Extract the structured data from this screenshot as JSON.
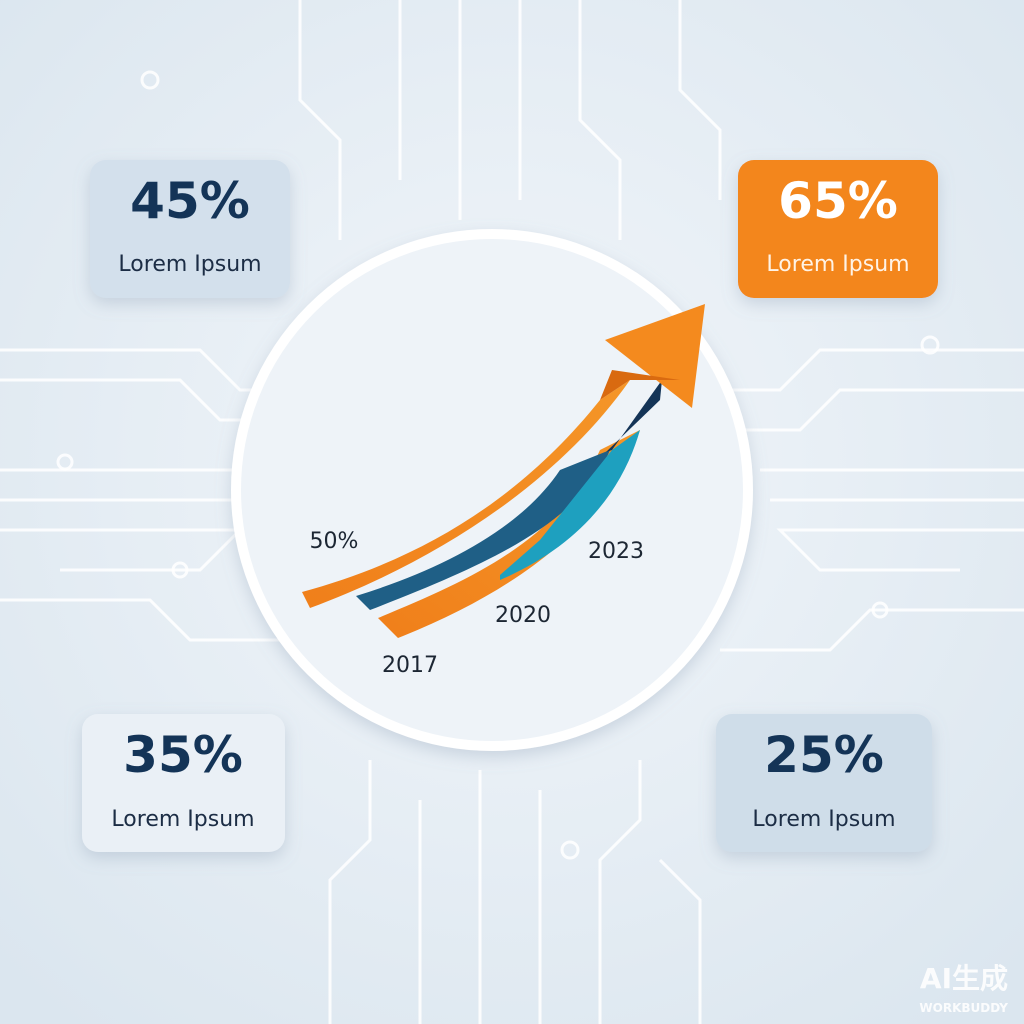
{
  "cards": [
    {
      "value": "45%",
      "label": "Lorem Ipsum"
    },
    {
      "value": "65%",
      "label": "Lorem Ipsum"
    },
    {
      "value": "35%",
      "label": "Lorem Ipsum"
    },
    {
      "value": "25%",
      "label": "Lorem Ipsum"
    }
  ],
  "center": {
    "start_value": "50%",
    "years": [
      "2017",
      "2020",
      "2023"
    ]
  },
  "watermark": {
    "main": "AI生成",
    "sub": "WORKBUDDY"
  }
}
